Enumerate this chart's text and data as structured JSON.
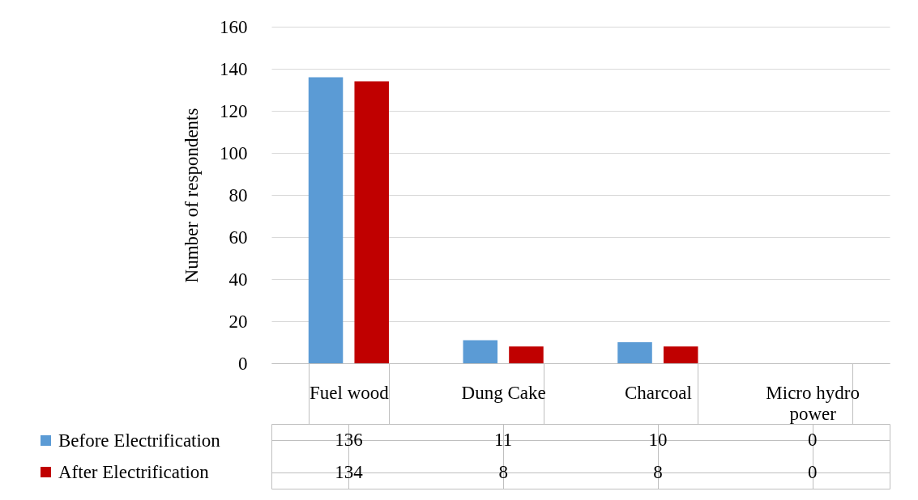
{
  "chart_data": {
    "type": "bar",
    "ylabel": "Number of respondents",
    "categories": [
      "Fuel wood",
      "Dung Cake",
      "Charcoal",
      "Micro hydro power"
    ],
    "series": [
      {
        "name": "Before Electrification",
        "color": "#5b9bd5",
        "values": [
          136,
          11,
          10,
          0
        ]
      },
      {
        "name": "After Electrification",
        "color": "#c00000",
        "values": [
          134,
          8,
          8,
          0
        ]
      }
    ],
    "ylim": [
      0,
      160
    ],
    "yticks": [
      0,
      20,
      40,
      60,
      80,
      100,
      120,
      140,
      160
    ],
    "grid": "y",
    "legend": "bottom left",
    "data_labels": true
  }
}
